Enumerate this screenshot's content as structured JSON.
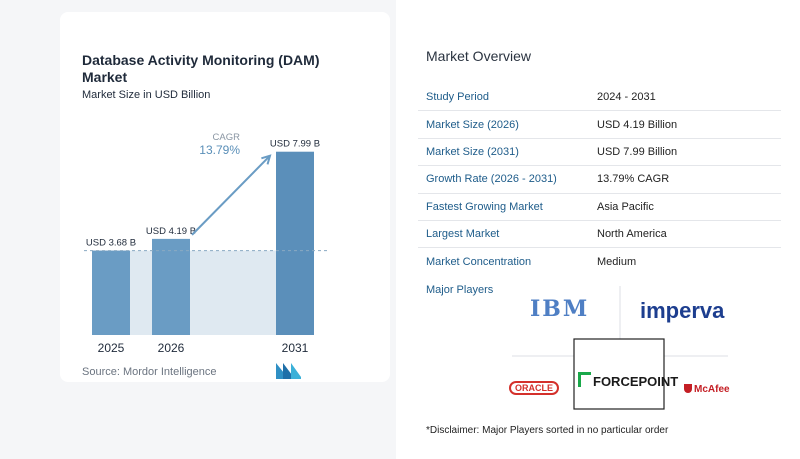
{
  "chart_data": {
    "type": "bar",
    "title": "Database Activity Monitoring (DAM) Market",
    "subtitle": "Market Size in USD Billion",
    "categories": [
      "2025",
      "2026",
      "2031"
    ],
    "values": [
      3.68,
      4.19,
      7.99
    ],
    "value_labels": [
      "USD 3.68 B",
      "USD 4.19 B",
      "USD 7.99 B"
    ],
    "cagr_label": "CAGR",
    "cagr_value": "13.79%",
    "ylim": [
      0,
      8.5
    ],
    "colors": {
      "bar": "#6a9cc4",
      "bar_highlight": "#5b8fba",
      "band": "#dfe9f1",
      "arrow": "#6a9cc4",
      "cagr_text": "#5a8fb8"
    }
  },
  "source": "Source: Mordor Intelligence",
  "overview": {
    "title": "Market Overview",
    "rows": [
      {
        "key": "Study Period",
        "value": "2024 - 2031"
      },
      {
        "key": "Market Size (2026)",
        "value": "USD 4.19 Billion"
      },
      {
        "key": "Market Size (2031)",
        "value": "USD 7.99 Billion"
      },
      {
        "key": "Growth Rate (2026 - 2031)",
        "value": "13.79% CAGR"
      },
      {
        "key": "Fastest Growing Market",
        "value": "Asia Pacific"
      },
      {
        "key": "Largest Market",
        "value": "North America"
      },
      {
        "key": "Market Concentration",
        "value": "Medium"
      }
    ]
  },
  "major_players": {
    "title": "Major Players",
    "logos": [
      {
        "name": "IBM",
        "color": "#4f7fc4",
        "icon": "ibm-logo"
      },
      {
        "name": "imperva",
        "color": "#1d3e8f",
        "icon": "imperva-logo"
      },
      {
        "name": "ORACLE",
        "color": "#d4302b",
        "icon": "oracle-logo"
      },
      {
        "name": "FORCEPOINT",
        "color": "#1a1a1a",
        "icon": "forcepoint-logo"
      },
      {
        "name": "McAfee",
        "color": "#c41e24",
        "icon": "mcafee-logo"
      }
    ]
  },
  "disclaimer": "*Disclaimer: Major Players sorted in no particular order"
}
